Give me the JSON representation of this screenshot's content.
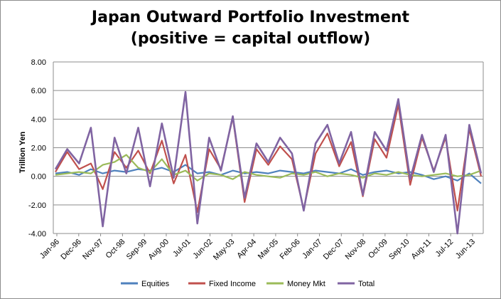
{
  "chart_data": {
    "type": "line",
    "title_lines": [
      "Japan Outward Portfolio Investment",
      "(positive = capital outflow)"
    ],
    "ylabel": "Trillion Yen",
    "ylim": [
      -4,
      8
    ],
    "yticks": [
      "-4.00",
      "-2.00",
      "0.00",
      "2.00",
      "4.00",
      "6.00",
      "8.00"
    ],
    "grid": true,
    "legend_position": "bottom",
    "x_tick_labels": [
      "Jan-96",
      "Dec-96",
      "Nov-97",
      "Oct-98",
      "Sep-99",
      "Aug-00",
      "Jul-01",
      "Jun-02",
      "May-03",
      "Apr-04",
      "Mar-05",
      "Feb-06",
      "Jan-07",
      "Dec-07",
      "Nov-08",
      "Oct-09",
      "Sep-10",
      "Aug-11",
      "Jul-12",
      "Jun-13"
    ],
    "x": [
      "Jan-96",
      "Jul-96",
      "Jan-97",
      "Jul-97",
      "Jan-98",
      "Jul-98",
      "Jan-99",
      "Jul-99",
      "Jan-00",
      "Jul-00",
      "Jan-01",
      "Jul-01",
      "Jan-02",
      "Jul-02",
      "Jan-03",
      "Jul-03",
      "Jan-04",
      "Jul-04",
      "Jan-05",
      "Jul-05",
      "Jan-06",
      "Jul-06",
      "Jan-07",
      "Jul-07",
      "Jan-08",
      "Jul-08",
      "Jan-09",
      "Jul-09",
      "Jan-10",
      "Jul-10",
      "Jan-11",
      "Jul-11",
      "Jan-12",
      "Jul-12",
      "Jan-13",
      "Jul-13",
      "Jan-14"
    ],
    "series": [
      {
        "name": "Equities",
        "color": "#4f81bd",
        "values": [
          0.2,
          0.3,
          0.1,
          0.5,
          0.2,
          0.4,
          0.3,
          0.5,
          0.4,
          0.6,
          0.3,
          0.8,
          0.2,
          0.3,
          0.1,
          0.4,
          0.2,
          0.3,
          0.2,
          0.4,
          0.3,
          0.2,
          0.4,
          0.3,
          0.2,
          0.5,
          0.1,
          0.3,
          0.4,
          0.2,
          0.3,
          0.1,
          -0.2,
          0.0,
          -0.3,
          0.2,
          -0.5
        ]
      },
      {
        "name": "Fixed Income",
        "color": "#c0504d",
        "values": [
          0.3,
          1.7,
          0.5,
          0.9,
          -0.9,
          1.7,
          0.6,
          1.8,
          0.2,
          2.5,
          -0.5,
          1.5,
          -2.5,
          1.9,
          0.5,
          4.1,
          -1.8,
          1.9,
          0.8,
          2.1,
          1.2,
          -2.3,
          1.6,
          3.0,
          0.7,
          2.4,
          -1.4,
          2.6,
          1.3,
          5.0,
          -0.6,
          2.7,
          0.4,
          2.7,
          -2.4,
          3.3,
          0.0
        ]
      },
      {
        "name": "Money Mkt",
        "color": "#9bbb59",
        "values": [
          0.1,
          0.2,
          0.3,
          0.2,
          0.8,
          1.0,
          1.5,
          0.6,
          0.3,
          1.2,
          0.1,
          0.4,
          -0.3,
          0.2,
          0.1,
          -0.2,
          0.3,
          0.1,
          0.0,
          -0.1,
          0.2,
          0.1,
          0.3,
          0.0,
          0.2,
          0.1,
          -0.1,
          0.2,
          0.1,
          0.3,
          0.1,
          0.0,
          0.1,
          0.2,
          0.0,
          0.1,
          0.4
        ]
      },
      {
        "name": "Total",
        "color": "#8064a2",
        "values": [
          0.5,
          1.9,
          0.9,
          3.4,
          -3.5,
          2.7,
          0.2,
          3.4,
          -0.7,
          3.7,
          -0.1,
          5.9,
          -3.3,
          2.7,
          0.4,
          4.2,
          -1.5,
          2.3,
          1.0,
          2.7,
          1.6,
          -2.4,
          2.3,
          3.6,
          0.9,
          3.1,
          -1.3,
          3.1,
          1.8,
          5.4,
          -0.2,
          2.9,
          0.3,
          2.9,
          -4.0,
          3.6,
          0.2
        ]
      }
    ]
  }
}
